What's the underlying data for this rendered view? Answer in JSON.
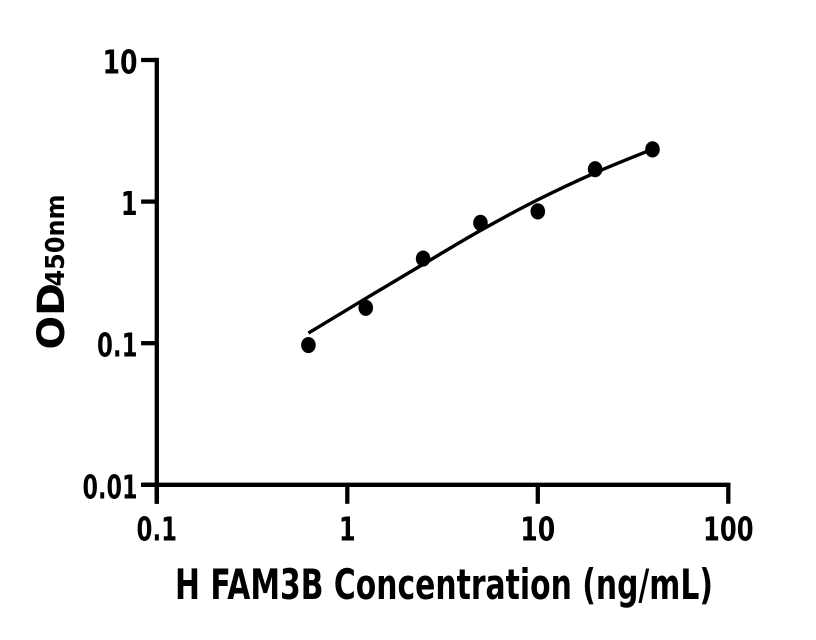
{
  "chart_data": {
    "type": "scatter",
    "title": "",
    "xlabel": "H FAM3B Concentration (ng/mL)",
    "ylabel_main": "OD",
    "ylabel_sub": "450nm",
    "x_scale": "log",
    "y_scale": "log",
    "xlim": [
      0.1,
      100
    ],
    "ylim": [
      0.01,
      10
    ],
    "x_ticks": {
      "values": [
        0.1,
        1,
        10,
        100
      ],
      "labels": [
        "0.1",
        "1",
        "10",
        "100"
      ]
    },
    "y_ticks": {
      "values": [
        0.01,
        0.1,
        1,
        10
      ],
      "labels": [
        "0.01",
        "0.1",
        "1",
        "10"
      ]
    },
    "series": [
      {
        "name": "H FAM3B standard curve points",
        "marker": "filled-circle",
        "x": [
          0.625,
          1.25,
          2.5,
          5,
          10,
          20,
          40
        ],
        "y": [
          0.097,
          0.178,
          0.396,
          0.708,
          0.853,
          1.694,
          2.337
        ]
      }
    ],
    "fit_curve": {
      "name": "four-parameter-logistic fit",
      "x": [
        0.625,
        1.25,
        2.5,
        5,
        10,
        20,
        40
      ],
      "y": [
        0.118,
        0.207,
        0.361,
        0.625,
        1.03,
        1.597,
        2.345
      ]
    },
    "grid": false,
    "legend": false,
    "colors": {
      "background": "#ffffff",
      "axis": "#000000",
      "text": "#000000",
      "points": "#000000",
      "curve": "#000000"
    }
  }
}
